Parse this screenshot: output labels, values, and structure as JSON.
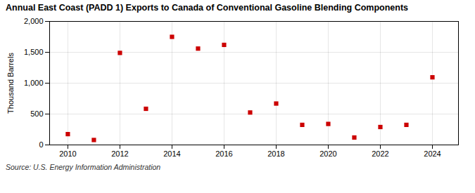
{
  "chart_data": {
    "type": "scatter",
    "title": "Annual East Coast (PADD 1) Exports to Canada of Conventional Gasoline Blending Components",
    "ylabel": "Thousand Barrels",
    "annotation": "Source: U.S. Energy Information Administration",
    "x": [
      2010,
      2011,
      2012,
      2013,
      2014,
      2015,
      2016,
      2017,
      2018,
      2019,
      2020,
      2021,
      2022,
      2023,
      2024
    ],
    "values": [
      175,
      80,
      1490,
      585,
      1750,
      1560,
      1620,
      525,
      670,
      325,
      340,
      120,
      290,
      325,
      1095
    ],
    "color": "#cc0000",
    "marker": "square",
    "grid": true,
    "xlim": [
      2009.3,
      2025.0
    ],
    "xticks": [
      2010,
      2012,
      2014,
      2016,
      2018,
      2020,
      2022,
      2024
    ],
    "ylim": [
      0,
      2000
    ],
    "yticks": [
      0,
      500,
      {
        "value": 1000,
        "label": "1,000"
      },
      {
        "value": 1500,
        "label": "1,500"
      },
      {
        "value": 2000,
        "label": "2,000"
      }
    ]
  }
}
